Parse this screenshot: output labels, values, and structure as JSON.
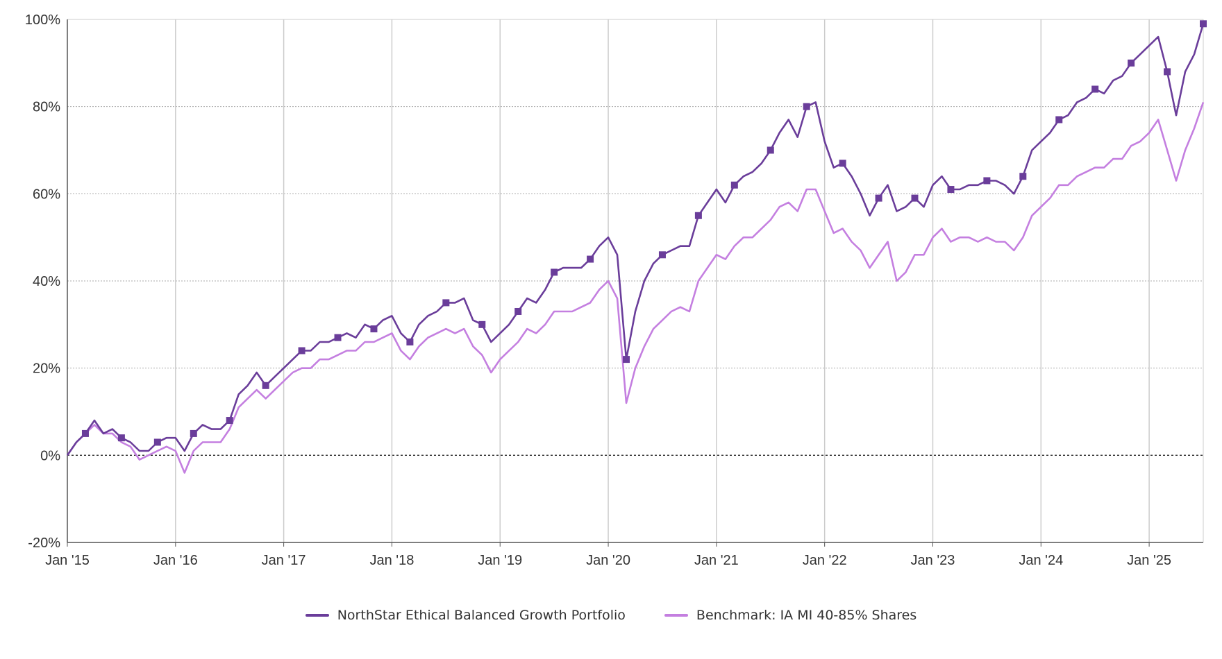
{
  "chart_data": {
    "type": "line",
    "title": "",
    "xlabel": "",
    "ylabel": "",
    "x_ticks": [
      "Jan '15",
      "Jan '16",
      "Jan '17",
      "Jan '18",
      "Jan '19",
      "Jan '20",
      "Jan '21",
      "Jan '22",
      "Jan '23",
      "Jan '24",
      "Jan '25"
    ],
    "y_ticks": [
      "-20%",
      "0%",
      "20%",
      "40%",
      "60%",
      "80%",
      "100%"
    ],
    "xlim": [
      "2015-01",
      "2025-07"
    ],
    "ylim": [
      -20,
      100
    ],
    "grid": true,
    "legend_position": "bottom",
    "series": [
      {
        "name": "NorthStar Ethical Balanced Growth Portfolio",
        "color": "#6a3d9a",
        "marker": "square",
        "points": [
          [
            "2015-01",
            0
          ],
          [
            "2015-02",
            3
          ],
          [
            "2015-03",
            5
          ],
          [
            "2015-04",
            8
          ],
          [
            "2015-05",
            5
          ],
          [
            "2015-06",
            6
          ],
          [
            "2015-07",
            4
          ],
          [
            "2015-08",
            3
          ],
          [
            "2015-09",
            1
          ],
          [
            "2015-10",
            1
          ],
          [
            "2015-11",
            3
          ],
          [
            "2015-12",
            4
          ],
          [
            "2016-01",
            4
          ],
          [
            "2016-02",
            1
          ],
          [
            "2016-03",
            5
          ],
          [
            "2016-04",
            7
          ],
          [
            "2016-05",
            6
          ],
          [
            "2016-06",
            6
          ],
          [
            "2016-07",
            8
          ],
          [
            "2016-08",
            14
          ],
          [
            "2016-09",
            16
          ],
          [
            "2016-10",
            19
          ],
          [
            "2016-11",
            16
          ],
          [
            "2016-12",
            18
          ],
          [
            "2017-01",
            20
          ],
          [
            "2017-02",
            22
          ],
          [
            "2017-03",
            24
          ],
          [
            "2017-04",
            24
          ],
          [
            "2017-05",
            26
          ],
          [
            "2017-06",
            26
          ],
          [
            "2017-07",
            27
          ],
          [
            "2017-08",
            28
          ],
          [
            "2017-09",
            27
          ],
          [
            "2017-10",
            30
          ],
          [
            "2017-11",
            29
          ],
          [
            "2017-12",
            31
          ],
          [
            "2018-01",
            32
          ],
          [
            "2018-02",
            28
          ],
          [
            "2018-03",
            26
          ],
          [
            "2018-04",
            30
          ],
          [
            "2018-05",
            32
          ],
          [
            "2018-06",
            33
          ],
          [
            "2018-07",
            35
          ],
          [
            "2018-08",
            35
          ],
          [
            "2018-09",
            36
          ],
          [
            "2018-10",
            31
          ],
          [
            "2018-11",
            30
          ],
          [
            "2018-12",
            26
          ],
          [
            "2019-01",
            28
          ],
          [
            "2019-02",
            30
          ],
          [
            "2019-03",
            33
          ],
          [
            "2019-04",
            36
          ],
          [
            "2019-05",
            35
          ],
          [
            "2019-06",
            38
          ],
          [
            "2019-07",
            42
          ],
          [
            "2019-08",
            43
          ],
          [
            "2019-09",
            43
          ],
          [
            "2019-10",
            43
          ],
          [
            "2019-11",
            45
          ],
          [
            "2019-12",
            48
          ],
          [
            "2020-01",
            50
          ],
          [
            "2020-02",
            46
          ],
          [
            "2020-03",
            22
          ],
          [
            "2020-04",
            33
          ],
          [
            "2020-05",
            40
          ],
          [
            "2020-06",
            44
          ],
          [
            "2020-07",
            46
          ],
          [
            "2020-08",
            47
          ],
          [
            "2020-09",
            48
          ],
          [
            "2020-10",
            48
          ],
          [
            "2020-11",
            55
          ],
          [
            "2020-12",
            58
          ],
          [
            "2021-01",
            61
          ],
          [
            "2021-02",
            58
          ],
          [
            "2021-03",
            62
          ],
          [
            "2021-04",
            64
          ],
          [
            "2021-05",
            65
          ],
          [
            "2021-06",
            67
          ],
          [
            "2021-07",
            70
          ],
          [
            "2021-08",
            74
          ],
          [
            "2021-09",
            77
          ],
          [
            "2021-10",
            73
          ],
          [
            "2021-11",
            80
          ],
          [
            "2021-12",
            81
          ],
          [
            "2022-01",
            72
          ],
          [
            "2022-02",
            66
          ],
          [
            "2022-03",
            67
          ],
          [
            "2022-04",
            64
          ],
          [
            "2022-05",
            60
          ],
          [
            "2022-06",
            55
          ],
          [
            "2022-07",
            59
          ],
          [
            "2022-08",
            62
          ],
          [
            "2022-09",
            56
          ],
          [
            "2022-10",
            57
          ],
          [
            "2022-11",
            59
          ],
          [
            "2022-12",
            57
          ],
          [
            "2023-01",
            62
          ],
          [
            "2023-02",
            64
          ],
          [
            "2023-03",
            61
          ],
          [
            "2023-04",
            61
          ],
          [
            "2023-05",
            62
          ],
          [
            "2023-06",
            62
          ],
          [
            "2023-07",
            63
          ],
          [
            "2023-08",
            63
          ],
          [
            "2023-09",
            62
          ],
          [
            "2023-10",
            60
          ],
          [
            "2023-11",
            64
          ],
          [
            "2023-12",
            70
          ],
          [
            "2024-01",
            72
          ],
          [
            "2024-02",
            74
          ],
          [
            "2024-03",
            77
          ],
          [
            "2024-04",
            78
          ],
          [
            "2024-05",
            81
          ],
          [
            "2024-06",
            82
          ],
          [
            "2024-07",
            84
          ],
          [
            "2024-08",
            83
          ],
          [
            "2024-09",
            86
          ],
          [
            "2024-10",
            87
          ],
          [
            "2024-11",
            90
          ],
          [
            "2024-12",
            92
          ],
          [
            "2025-01",
            94
          ],
          [
            "2025-02",
            96
          ],
          [
            "2025-03",
            88
          ],
          [
            "2025-04",
            78
          ],
          [
            "2025-05",
            88
          ],
          [
            "2025-06",
            92
          ],
          [
            "2025-07",
            99
          ]
        ]
      },
      {
        "name": "Benchmark: IA MI 40-85% Shares",
        "color": "#c47fe0",
        "marker": "none",
        "points": [
          [
            "2015-01",
            0
          ],
          [
            "2015-02",
            3
          ],
          [
            "2015-03",
            5
          ],
          [
            "2015-04",
            7
          ],
          [
            "2015-05",
            5
          ],
          [
            "2015-06",
            5
          ],
          [
            "2015-07",
            3
          ],
          [
            "2015-08",
            2
          ],
          [
            "2015-09",
            -1
          ],
          [
            "2015-10",
            0
          ],
          [
            "2015-11",
            1
          ],
          [
            "2015-12",
            2
          ],
          [
            "2016-01",
            1
          ],
          [
            "2016-02",
            -4
          ],
          [
            "2016-03",
            1
          ],
          [
            "2016-04",
            3
          ],
          [
            "2016-05",
            3
          ],
          [
            "2016-06",
            3
          ],
          [
            "2016-07",
            6
          ],
          [
            "2016-08",
            11
          ],
          [
            "2016-09",
            13
          ],
          [
            "2016-10",
            15
          ],
          [
            "2016-11",
            13
          ],
          [
            "2016-12",
            15
          ],
          [
            "2017-01",
            17
          ],
          [
            "2017-02",
            19
          ],
          [
            "2017-03",
            20
          ],
          [
            "2017-04",
            20
          ],
          [
            "2017-05",
            22
          ],
          [
            "2017-06",
            22
          ],
          [
            "2017-07",
            23
          ],
          [
            "2017-08",
            24
          ],
          [
            "2017-09",
            24
          ],
          [
            "2017-10",
            26
          ],
          [
            "2017-11",
            26
          ],
          [
            "2017-12",
            27
          ],
          [
            "2018-01",
            28
          ],
          [
            "2018-02",
            24
          ],
          [
            "2018-03",
            22
          ],
          [
            "2018-04",
            25
          ],
          [
            "2018-05",
            27
          ],
          [
            "2018-06",
            28
          ],
          [
            "2018-07",
            29
          ],
          [
            "2018-08",
            28
          ],
          [
            "2018-09",
            29
          ],
          [
            "2018-10",
            25
          ],
          [
            "2018-11",
            23
          ],
          [
            "2018-12",
            19
          ],
          [
            "2019-01",
            22
          ],
          [
            "2019-02",
            24
          ],
          [
            "2019-03",
            26
          ],
          [
            "2019-04",
            29
          ],
          [
            "2019-05",
            28
          ],
          [
            "2019-06",
            30
          ],
          [
            "2019-07",
            33
          ],
          [
            "2019-08",
            33
          ],
          [
            "2019-09",
            33
          ],
          [
            "2019-10",
            34
          ],
          [
            "2019-11",
            35
          ],
          [
            "2019-12",
            38
          ],
          [
            "2020-01",
            40
          ],
          [
            "2020-02",
            36
          ],
          [
            "2020-03",
            12
          ],
          [
            "2020-04",
            20
          ],
          [
            "2020-05",
            25
          ],
          [
            "2020-06",
            29
          ],
          [
            "2020-07",
            31
          ],
          [
            "2020-08",
            33
          ],
          [
            "2020-09",
            34
          ],
          [
            "2020-10",
            33
          ],
          [
            "2020-11",
            40
          ],
          [
            "2020-12",
            43
          ],
          [
            "2021-01",
            46
          ],
          [
            "2021-02",
            45
          ],
          [
            "2021-03",
            48
          ],
          [
            "2021-04",
            50
          ],
          [
            "2021-05",
            50
          ],
          [
            "2021-06",
            52
          ],
          [
            "2021-07",
            54
          ],
          [
            "2021-08",
            57
          ],
          [
            "2021-09",
            58
          ],
          [
            "2021-10",
            56
          ],
          [
            "2021-11",
            61
          ],
          [
            "2021-12",
            61
          ],
          [
            "2022-01",
            56
          ],
          [
            "2022-02",
            51
          ],
          [
            "2022-03",
            52
          ],
          [
            "2022-04",
            49
          ],
          [
            "2022-05",
            47
          ],
          [
            "2022-06",
            43
          ],
          [
            "2022-07",
            46
          ],
          [
            "2022-08",
            49
          ],
          [
            "2022-09",
            40
          ],
          [
            "2022-10",
            42
          ],
          [
            "2022-11",
            46
          ],
          [
            "2022-12",
            46
          ],
          [
            "2023-01",
            50
          ],
          [
            "2023-02",
            52
          ],
          [
            "2023-03",
            49
          ],
          [
            "2023-04",
            50
          ],
          [
            "2023-05",
            50
          ],
          [
            "2023-06",
            49
          ],
          [
            "2023-07",
            50
          ],
          [
            "2023-08",
            49
          ],
          [
            "2023-09",
            49
          ],
          [
            "2023-10",
            47
          ],
          [
            "2023-11",
            50
          ],
          [
            "2023-12",
            55
          ],
          [
            "2024-01",
            57
          ],
          [
            "2024-02",
            59
          ],
          [
            "2024-03",
            62
          ],
          [
            "2024-04",
            62
          ],
          [
            "2024-05",
            64
          ],
          [
            "2024-06",
            65
          ],
          [
            "2024-07",
            66
          ],
          [
            "2024-08",
            66
          ],
          [
            "2024-09",
            68
          ],
          [
            "2024-10",
            68
          ],
          [
            "2024-11",
            71
          ],
          [
            "2024-12",
            72
          ],
          [
            "2025-01",
            74
          ],
          [
            "2025-02",
            77
          ],
          [
            "2025-03",
            70
          ],
          [
            "2025-04",
            63
          ],
          [
            "2025-05",
            70
          ],
          [
            "2025-06",
            75
          ],
          [
            "2025-07",
            81
          ]
        ]
      }
    ]
  }
}
